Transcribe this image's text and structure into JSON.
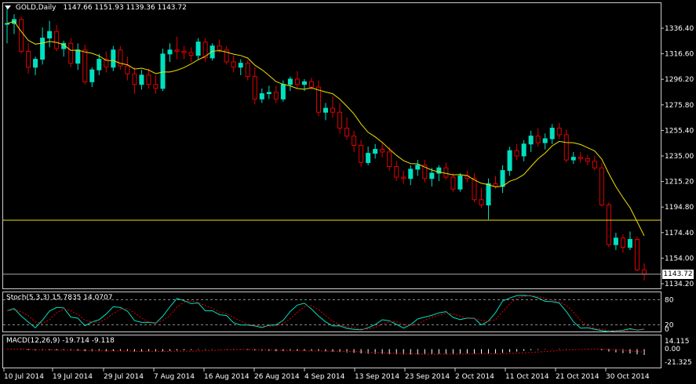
{
  "header": {
    "symbol": "GOLD,Daily",
    "ohlc": "1147.66 1151.93 1139.36 1143.72"
  },
  "current_price_label": "1143.72",
  "price_axis_ticks": [
    "1336.40",
    "1316.60",
    "1296.20",
    "1275.80",
    "1255.40",
    "1235.00",
    "1215.20",
    "1194.80",
    "1174.40",
    "1154.00",
    "1134.20"
  ],
  "stoch": {
    "label": "Stoch(5,3,3) 15.7835 14.0707",
    "ticks": [
      "80",
      "20",
      "0"
    ]
  },
  "macd": {
    "label": "MACD(12,26,9) -19.714 -9.118",
    "ticks": [
      "14.115",
      "0.00",
      "-21.325"
    ]
  },
  "date_labels": [
    "10 Jul 2014",
    "19 Jul 2014",
    "29 Jul 2014",
    "7 Aug 2014",
    "16 Aug 2014",
    "26 Aug 2014",
    "4 Sep 2014",
    "13 Sep 2014",
    "23 Sep 2014",
    "2 Oct 2014",
    "11 Oct 2014",
    "21 Oct 2014",
    "30 Oct 2014"
  ],
  "colors": {
    "bull": "#00e0c0",
    "bear": "#e00000",
    "ma": "#f0e000",
    "signal": "#e00000",
    "grid": "#cccccc"
  },
  "chart_data": {
    "type": "candlestick",
    "price_range": [
      1134.2,
      1346.0
    ],
    "horizontal_levels": [
      1184.5,
      1143.72
    ],
    "candles": [
      [
        1333,
        1346,
        1318,
        1333
      ],
      [
        1333,
        1340,
        1325,
        1336
      ],
      [
        1336,
        1338,
        1310,
        1312
      ],
      [
        1312,
        1318,
        1295,
        1300
      ],
      [
        1300,
        1308,
        1294,
        1306
      ],
      [
        1306,
        1330,
        1302,
        1322
      ],
      [
        1322,
        1335,
        1315,
        1327
      ],
      [
        1327,
        1332,
        1312,
        1314
      ],
      [
        1314,
        1320,
        1308,
        1318
      ],
      [
        1318,
        1322,
        1300,
        1303
      ],
      [
        1303,
        1318,
        1298,
        1313
      ],
      [
        1313,
        1317,
        1287,
        1289
      ],
      [
        1289,
        1300,
        1285,
        1298
      ],
      [
        1298,
        1310,
        1294,
        1306
      ],
      [
        1306,
        1312,
        1296,
        1300
      ],
      [
        1300,
        1316,
        1297,
        1313
      ],
      [
        1313,
        1316,
        1298,
        1301
      ],
      [
        1301,
        1308,
        1290,
        1295
      ],
      [
        1295,
        1300,
        1280,
        1287
      ],
      [
        1287,
        1298,
        1283,
        1294
      ],
      [
        1294,
        1299,
        1284,
        1287
      ],
      [
        1287,
        1294,
        1280,
        1284
      ],
      [
        1284,
        1314,
        1282,
        1310
      ],
      [
        1310,
        1318,
        1304,
        1313
      ],
      [
        1313,
        1323,
        1306,
        1312
      ],
      [
        1312,
        1316,
        1306,
        1311
      ],
      [
        1311,
        1315,
        1304,
        1309
      ],
      [
        1309,
        1322,
        1306,
        1319
      ],
      [
        1319,
        1322,
        1304,
        1307
      ],
      [
        1307,
        1318,
        1305,
        1316
      ],
      [
        1316,
        1321,
        1311,
        1313
      ],
      [
        1313,
        1316,
        1302,
        1304
      ],
      [
        1304,
        1309,
        1296,
        1300
      ],
      [
        1300,
        1306,
        1294,
        1303
      ],
      [
        1303,
        1305,
        1290,
        1293
      ],
      [
        1293,
        1300,
        1272,
        1276
      ],
      [
        1276,
        1284,
        1273,
        1280
      ],
      [
        1280,
        1286,
        1276,
        1281
      ],
      [
        1281,
        1286,
        1273,
        1276
      ],
      [
        1276,
        1290,
        1274,
        1287
      ],
      [
        1287,
        1293,
        1282,
        1291
      ],
      [
        1291,
        1297,
        1284,
        1287
      ],
      [
        1287,
        1291,
        1282,
        1289
      ],
      [
        1289,
        1292,
        1283,
        1285
      ],
      [
        1285,
        1290,
        1263,
        1266
      ],
      [
        1266,
        1273,
        1260,
        1269
      ],
      [
        1269,
        1278,
        1262,
        1266
      ],
      [
        1266,
        1273,
        1250,
        1254
      ],
      [
        1254,
        1262,
        1245,
        1248
      ],
      [
        1248,
        1252,
        1236,
        1241
      ],
      [
        1241,
        1245,
        1225,
        1228
      ],
      [
        1228,
        1240,
        1226,
        1235
      ],
      [
        1235,
        1242,
        1231,
        1238
      ],
      [
        1238,
        1243,
        1232,
        1236
      ],
      [
        1236,
        1240,
        1222,
        1225
      ],
      [
        1225,
        1229,
        1214,
        1217
      ],
      [
        1217,
        1222,
        1212,
        1216
      ],
      [
        1216,
        1226,
        1211,
        1223
      ],
      [
        1223,
        1230,
        1218,
        1226
      ],
      [
        1226,
        1230,
        1213,
        1216
      ],
      [
        1216,
        1224,
        1210,
        1220
      ],
      [
        1220,
        1226,
        1214,
        1224
      ],
      [
        1224,
        1228,
        1215,
        1217
      ],
      [
        1217,
        1220,
        1206,
        1208
      ],
      [
        1208,
        1220,
        1206,
        1218
      ],
      [
        1218,
        1222,
        1213,
        1216
      ],
      [
        1216,
        1220,
        1198,
        1200
      ],
      [
        1200,
        1209,
        1194,
        1196
      ],
      [
        1196,
        1216,
        1185,
        1212
      ],
      [
        1212,
        1218,
        1208,
        1210
      ],
      [
        1210,
        1226,
        1205,
        1222
      ],
      [
        1222,
        1240,
        1218,
        1237
      ],
      [
        1237,
        1242,
        1230,
        1233
      ],
      [
        1233,
        1245,
        1229,
        1242
      ],
      [
        1242,
        1252,
        1236,
        1248
      ],
      [
        1248,
        1254,
        1240,
        1243
      ],
      [
        1243,
        1250,
        1238,
        1246
      ],
      [
        1246,
        1257,
        1242,
        1254
      ],
      [
        1254,
        1258,
        1246,
        1249
      ],
      [
        1249,
        1253,
        1228,
        1230
      ],
      [
        1230,
        1236,
        1227,
        1232
      ],
      [
        1232,
        1236,
        1228,
        1231
      ],
      [
        1231,
        1234,
        1226,
        1229
      ],
      [
        1229,
        1233,
        1222,
        1224
      ],
      [
        1224,
        1228,
        1195,
        1196
      ],
      [
        1196,
        1198,
        1164,
        1166
      ],
      [
        1166,
        1175,
        1162,
        1171
      ],
      [
        1171,
        1174,
        1160,
        1164
      ],
      [
        1164,
        1176,
        1162,
        1170
      ],
      [
        1170,
        1172,
        1146,
        1147
      ],
      [
        1147,
        1152,
        1139,
        1143.7
      ]
    ]
  }
}
